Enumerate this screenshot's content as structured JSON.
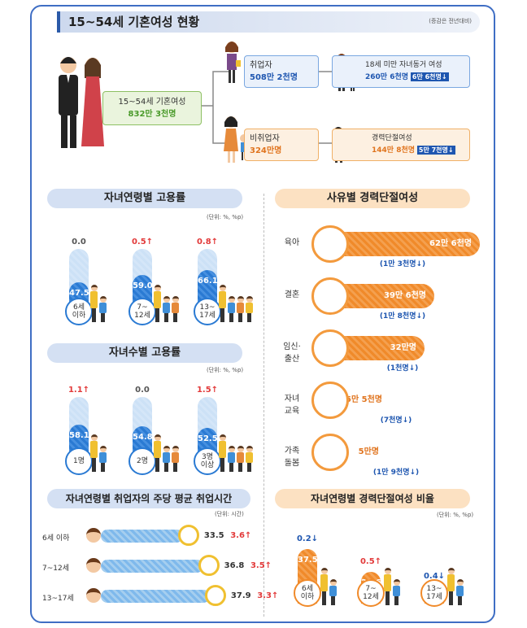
{
  "header": {
    "title": "15~54세 기혼여성 현황",
    "note": "(증감은 전년대비)"
  },
  "tree": {
    "root": {
      "label": "15~54세 기혼여성",
      "value": "832만 3천명"
    },
    "employed": {
      "label": "취업자",
      "value": "508만 2천명"
    },
    "nonemployed": {
      "label": "비취업자",
      "value": "324만명"
    },
    "with_child": {
      "label": "18세 미만 자녀동거 여성",
      "value": "260만 6천명",
      "change": "6만 6천명↓"
    },
    "career_break": {
      "label": "경력단절여성",
      "value": "144만 8천명",
      "change": "5만 7천명↓"
    }
  },
  "sections": {
    "s1": "자녀연령별 고용률",
    "s2": "자녀수별 고용률",
    "s3": "자녀연령별 취업자의 주당 평균 취업시간",
    "s4": "사유별 경력단절여성",
    "s5": "자녀연령별 경력단절여성 비율"
  },
  "units": {
    "u1": "(단위: %, %p)",
    "u2": "(단위: %, %p)",
    "u3": "(단위: 시간)",
    "u5": "(단위: %, %p)"
  },
  "chart_data": [
    {
      "type": "bar",
      "title": "자녀연령별 고용률",
      "categories": [
        "6세 이하",
        "7~12세",
        "13~17세"
      ],
      "values": [
        47.5,
        59.0,
        66.1
      ],
      "changes": [
        "0.0",
        "0.5↑",
        "0.8↑"
      ],
      "ylim": [
        0,
        100
      ]
    },
    {
      "type": "bar",
      "title": "자녀수별 고용률",
      "categories": [
        "1명",
        "2명",
        "3명 이상"
      ],
      "values": [
        58.1,
        54.8,
        52.5
      ],
      "changes": [
        "1.1↑",
        "0.0",
        "1.5↑"
      ],
      "ylim": [
        0,
        100
      ]
    },
    {
      "type": "bar",
      "title": "자녀연령별 취업자의 주당 평균 취업시간",
      "categories": [
        "6세 이하",
        "7~12세",
        "13~17세"
      ],
      "values": [
        33.5,
        36.8,
        37.9
      ],
      "changes": [
        "3.6↑",
        "3.5↑",
        "3.3↑"
      ]
    },
    {
      "type": "bar",
      "title": "사유별 경력단절여성",
      "categories": [
        "육아",
        "결혼",
        "임신·출산",
        "자녀교육",
        "가족돌봄"
      ],
      "values": [
        "62만 6천명",
        "39만 6천명",
        "32만명",
        "5만 5천명",
        "5만명"
      ],
      "changes": [
        "(1만 3천명↓)",
        "(1만 8천명↓)",
        "(1천명↓)",
        "(7천명↓)",
        "(1만 9천명↓)"
      ]
    },
    {
      "type": "bar",
      "title": "자녀연령별 경력단절여성 비율",
      "categories": [
        "6세 이하",
        "7~12세",
        "13~17세"
      ],
      "values": [
        37.5,
        21.6,
        11.5
      ],
      "changes": [
        "0.2↓",
        "0.5↑",
        "0.4↓"
      ]
    }
  ],
  "cats1": [
    "6세\n이하",
    "7~\n12세",
    "13~\n17세"
  ],
  "cats2": [
    "1명",
    "2명",
    "3명\n이상"
  ],
  "reasons": [
    "육아",
    "결혼",
    "임신·\n출산",
    "자녀\n교육",
    "가족\n돌봄"
  ]
}
